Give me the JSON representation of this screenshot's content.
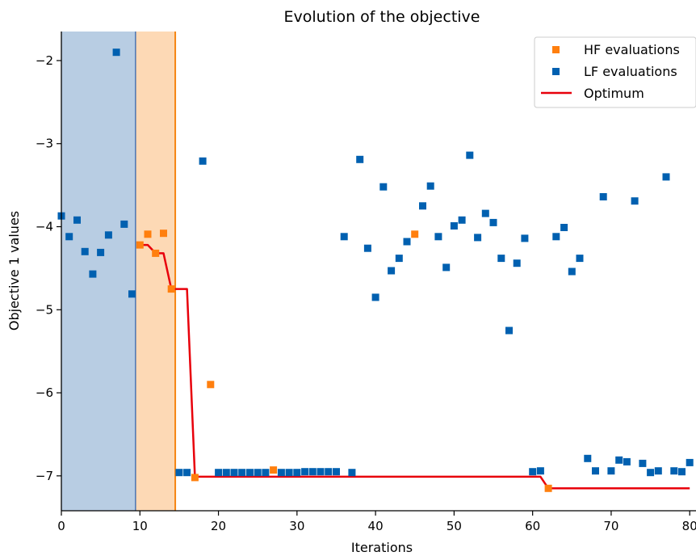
{
  "chart_data": {
    "type": "scatter",
    "title": "Evolution of the objective",
    "xlabel": "Iterations",
    "ylabel": "Objective 1 values",
    "xlim": [
      0,
      80.8
    ],
    "ylim": [
      -7.42,
      -1.65
    ],
    "xticks": [
      0,
      10,
      20,
      30,
      40,
      50,
      60,
      70,
      80
    ],
    "yticks": [
      -7,
      -6,
      -5,
      -4,
      -3,
      -2
    ],
    "grid": false,
    "legend_position": "top-right",
    "regions": [
      {
        "x0": 0,
        "x1": 9.5,
        "fill": "#b8cde3",
        "edge": "#0a47a0"
      },
      {
        "x0": 9.5,
        "x1": 14.5,
        "fill": "#fdd9b5",
        "edge": "#f58512"
      }
    ],
    "series": [
      {
        "name": "HF evaluations",
        "marker": "square",
        "color": "#ff7f0e",
        "points": [
          [
            10,
            -4.22
          ],
          [
            11,
            -4.09
          ],
          [
            12,
            -4.32
          ],
          [
            13,
            -4.08
          ],
          [
            14,
            -4.75
          ],
          [
            19,
            -5.9
          ],
          [
            17,
            -7.02
          ],
          [
            27,
            -6.93
          ],
          [
            45,
            -4.09
          ],
          [
            62,
            -7.15
          ]
        ]
      },
      {
        "name": "LF evaluations",
        "marker": "square",
        "color": "#0060b0",
        "points": [
          [
            0,
            -3.87
          ],
          [
            1,
            -4.12
          ],
          [
            2,
            -3.92
          ],
          [
            3,
            -4.3
          ],
          [
            4,
            -4.57
          ],
          [
            5,
            -4.31
          ],
          [
            6,
            -4.1
          ],
          [
            7,
            -1.9
          ],
          [
            8,
            -3.97
          ],
          [
            9,
            -4.81
          ],
          [
            15,
            -6.96
          ],
          [
            16,
            -6.96
          ],
          [
            18,
            -3.21
          ],
          [
            20,
            -6.96
          ],
          [
            21,
            -6.96
          ],
          [
            22,
            -6.96
          ],
          [
            23,
            -6.96
          ],
          [
            24,
            -6.96
          ],
          [
            25,
            -6.96
          ],
          [
            26,
            -6.96
          ],
          [
            28,
            -6.96
          ],
          [
            29,
            -6.96
          ],
          [
            30,
            -6.96
          ],
          [
            31,
            -6.95
          ],
          [
            32,
            -6.95
          ],
          [
            33,
            -6.95
          ],
          [
            34,
            -6.95
          ],
          [
            35,
            -6.95
          ],
          [
            36,
            -4.12
          ],
          [
            37,
            -6.96
          ],
          [
            38,
            -3.19
          ],
          [
            39,
            -4.26
          ],
          [
            40,
            -4.85
          ],
          [
            41,
            -3.52
          ],
          [
            42,
            -4.53
          ],
          [
            43,
            -4.38
          ],
          [
            44,
            -4.18
          ],
          [
            46,
            -3.75
          ],
          [
            47,
            -3.51
          ],
          [
            48,
            -4.12
          ],
          [
            49,
            -4.49
          ],
          [
            50,
            -3.99
          ],
          [
            51,
            -3.92
          ],
          [
            52,
            -3.14
          ],
          [
            53,
            -4.13
          ],
          [
            54,
            -3.84
          ],
          [
            55,
            -3.95
          ],
          [
            56,
            -4.38
          ],
          [
            57,
            -5.25
          ],
          [
            58,
            -4.44
          ],
          [
            59,
            -4.14
          ],
          [
            60,
            -6.95
          ],
          [
            61,
            -6.94
          ],
          [
            63,
            -4.12
          ],
          [
            64,
            -4.01
          ],
          [
            65,
            -4.54
          ],
          [
            66,
            -4.38
          ],
          [
            67,
            -6.79
          ],
          [
            68,
            -6.94
          ],
          [
            69,
            -3.64
          ],
          [
            70,
            -6.94
          ],
          [
            71,
            -6.81
          ],
          [
            72,
            -6.83
          ],
          [
            73,
            -3.69
          ],
          [
            74,
            -6.85
          ],
          [
            75,
            -6.96
          ],
          [
            76,
            -6.94
          ],
          [
            77,
            -3.4
          ],
          [
            78,
            -6.94
          ],
          [
            79,
            -6.95
          ],
          [
            80,
            -6.84
          ]
        ]
      },
      {
        "name": "Optimum",
        "type": "line",
        "color": "#e8000b",
        "points": [
          [
            10,
            -4.22
          ],
          [
            11,
            -4.22
          ],
          [
            12,
            -4.32
          ],
          [
            13,
            -4.32
          ],
          [
            14,
            -4.75
          ],
          [
            16,
            -4.75
          ],
          [
            17,
            -7.01
          ],
          [
            61,
            -7.01
          ],
          [
            62,
            -7.15
          ],
          [
            80,
            -7.15
          ]
        ]
      }
    ]
  }
}
